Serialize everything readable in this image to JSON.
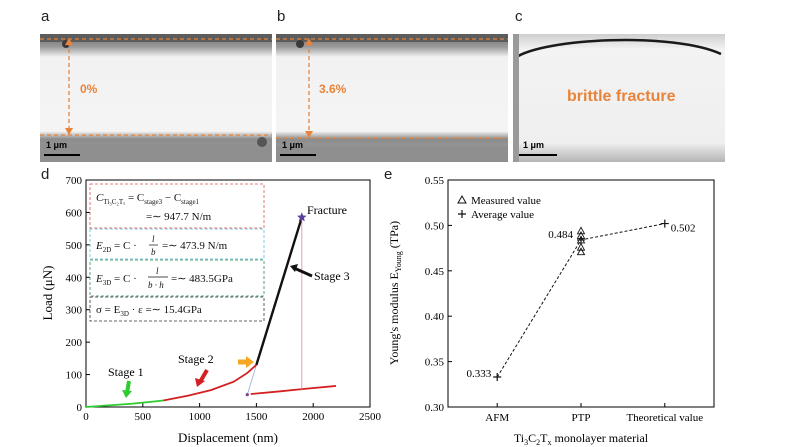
{
  "panels": {
    "a": {
      "letter": "a",
      "strain": "0%",
      "scale": "1 μm"
    },
    "b": {
      "letter": "b",
      "strain": "3.6%",
      "scale": "1 μm"
    },
    "c": {
      "letter": "c",
      "label": "brittle fracture",
      "scale": "1 μm"
    },
    "d": {
      "letter": "d"
    },
    "e": {
      "letter": "e"
    }
  },
  "colors": {
    "orange": "#e8843a",
    "green": "#2ecc2e",
    "red": "#d42020",
    "black": "#111111",
    "pink": "#c98bb5",
    "star": "#5a3fa0",
    "yellow_arrow": "#f5a623"
  },
  "chart_data": [
    {
      "type": "line",
      "xlabel": "Displacement (nm)",
      "ylabel": "Load (μN)",
      "xlim": [
        0,
        2500
      ],
      "ylim": [
        0,
        700
      ],
      "xticks": [
        0,
        500,
        1000,
        1500,
        2000,
        2500
      ],
      "yticks": [
        0,
        100,
        200,
        300,
        400,
        500,
        600,
        700
      ],
      "series": [
        {
          "name": "Stage 1",
          "color": "green",
          "x": [
            0,
            200,
            400,
            600,
            680
          ],
          "y": [
            0,
            5,
            10,
            17,
            20
          ]
        },
        {
          "name": "Stage 2",
          "color": "red",
          "x": [
            680,
            900,
            1100,
            1300,
            1420,
            1500
          ],
          "y": [
            20,
            35,
            52,
            78,
            105,
            130
          ]
        },
        {
          "name": "Stage 3",
          "color": "black",
          "x": [
            1500,
            1900
          ],
          "y": [
            130,
            585
          ]
        },
        {
          "color": "red",
          "x": [
            1450,
            1700,
            1900,
            2200
          ],
          "y": [
            40,
            48,
            55,
            65
          ]
        },
        {
          "color": "pink",
          "x": [
            1900,
            1900
          ],
          "y": [
            585,
            50
          ]
        }
      ],
      "annotations": {
        "fracture": "Fracture",
        "stage1": "Stage 1",
        "stage2": "Stage 2",
        "stage3": "Stage 3"
      },
      "equations": {
        "eq1_line1": "C",
        "eq1_sub": "Ti₃C₂Tₓ",
        "eq1_rhs": " = C",
        "eq1_s3": "stage3",
        "eq1_minus": " − C",
        "eq1_s1": "stage1",
        "eq1_line2": "=∼ 947.7 N/m",
        "eq2_lhs": "E",
        "eq2_sub": "2D",
        "eq2_mid": " = C ·",
        "eq2_num": "l",
        "eq2_den": "b",
        "eq2_val": "=∼ 473.9 N/m",
        "eq3_lhs": "E",
        "eq3_sub": "3D",
        "eq3_mid": " = C ·",
        "eq3_num": "l",
        "eq3_den": "b · h",
        "eq3_val": "=∼ 483.5GPa",
        "eq4": "σ = E",
        "eq4_sub": "3D",
        "eq4_rest": " · ε =∼ 15.4GPa"
      }
    },
    {
      "type": "scatter",
      "xlabel_main": "Ti",
      "xlabel_sub1": "3",
      "xlabel_mid": "C",
      "xlabel_sub2": "2",
      "xlabel_mid2": "T",
      "xlabel_sub3": "x",
      "xlabel_tail": " monolayer material",
      "ylabel_main": "Young's modulus E",
      "ylabel_sub": "Young",
      "ylabel_unit": " (TPa)",
      "categories": [
        "AFM",
        "PTP",
        "Theoretical value"
      ],
      "ylim": [
        0.3,
        0.55
      ],
      "yticks": [
        "0.30",
        "0.35",
        "0.40",
        "0.45",
        "0.50",
        "0.55"
      ],
      "measured": {
        "name": "Measured value",
        "x": [
          "PTP",
          "PTP",
          "PTP",
          "PTP",
          "PTP"
        ],
        "y": [
          0.494,
          0.489,
          0.484,
          0.476,
          0.471
        ]
      },
      "average": {
        "name": "Average value",
        "values": [
          0.333,
          0.484,
          0.502
        ]
      },
      "value_labels": [
        "0.333",
        "0.484",
        "0.502"
      ]
    }
  ]
}
